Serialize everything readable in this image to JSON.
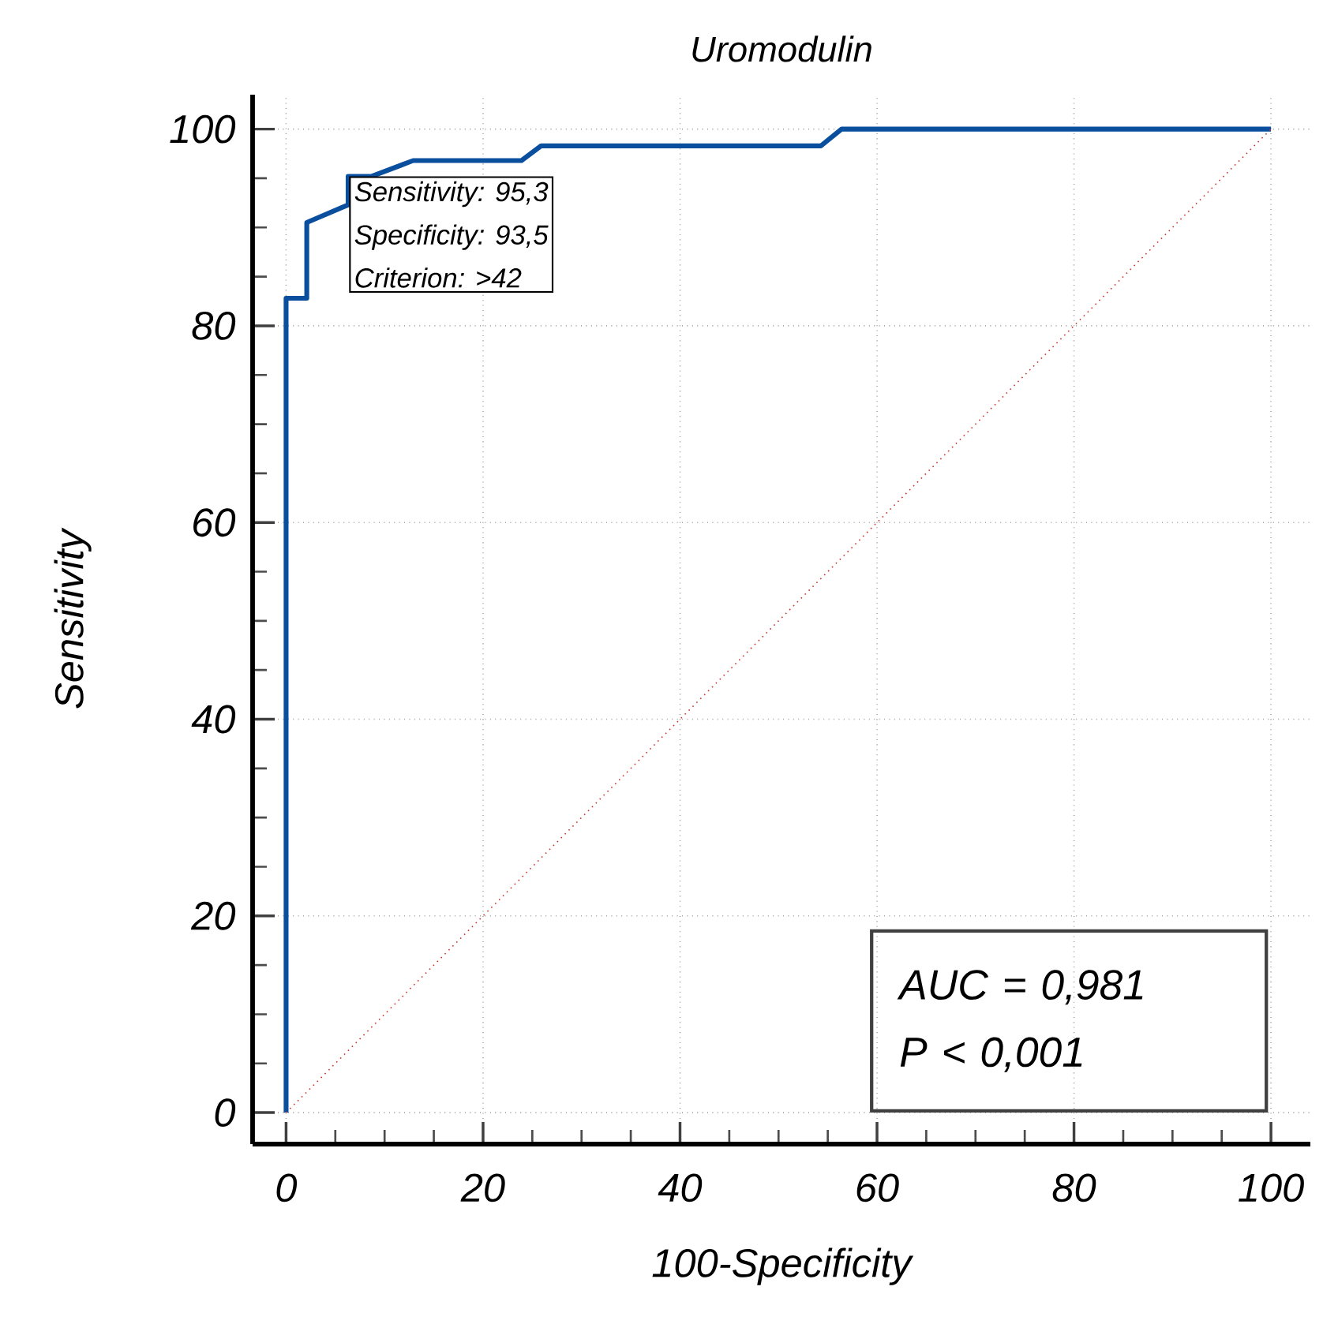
{
  "chart_data": {
    "type": "line",
    "title": "Uromodulin",
    "xlabel": "100-Specificity",
    "ylabel": "Sensitivity",
    "xlim": [
      -3.4,
      104
    ],
    "ylim": [
      -3.2,
      103.5
    ],
    "xticks": [
      0,
      20,
      40,
      60,
      80,
      100
    ],
    "yticks": [
      0,
      20,
      40,
      60,
      80,
      100
    ],
    "grid": true,
    "series": [
      {
        "type": "step",
        "color": "#0a4f9e",
        "x": [
          0,
          0,
          2.1,
          2.1,
          6.3,
          6.3,
          8.7,
          12.9,
          23.9,
          25.9,
          54.3,
          56.4,
          100
        ],
        "values": [
          0,
          82.8,
          82.8,
          90.5,
          92.3,
          95.2,
          95.2,
          96.8,
          96.8,
          98.3,
          98.3,
          100,
          100
        ]
      },
      {
        "type": "line",
        "color": "#cc3333",
        "line_style": "dotted",
        "x": [
          0,
          100
        ],
        "values": [
          0,
          100
        ]
      }
    ],
    "annotations": [
      "Sensitivity: 95,3",
      "Specificity: 93,5",
      "Criterion: >42",
      "AUC = 0,981",
      "P < 0,001"
    ]
  }
}
